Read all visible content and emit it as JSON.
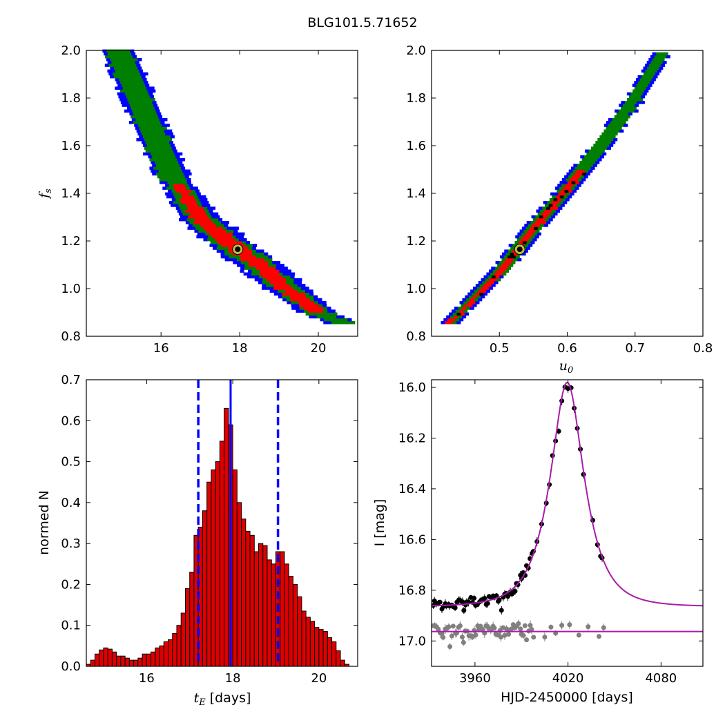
{
  "title": "BLG101.5.71652",
  "chart_data": [
    {
      "id": "fs_vs_tE",
      "type": "heatmap",
      "title": "",
      "xlabel": "",
      "ylabel": "f_s",
      "xlim": [
        14.1,
        21.0
      ],
      "ylim": [
        0.8,
        2.0
      ],
      "xticks": [
        16,
        18,
        20
      ],
      "yticks": [
        0.8,
        1.0,
        1.2,
        1.4,
        1.6,
        1.8,
        2.0
      ],
      "levels": [
        "red (1-sigma)",
        "green (2-sigma)",
        "blue (3-sigma)"
      ],
      "colors": {
        "red": "#ff0000",
        "green": "#007f00",
        "blue": "#0000ff",
        "best_fit_ring": "#bfbf3f"
      },
      "ridge": [
        [
          14.9,
          2.0
        ],
        [
          15.3,
          1.85
        ],
        [
          15.8,
          1.65
        ],
        [
          16.3,
          1.47
        ],
        [
          17.0,
          1.3
        ],
        [
          17.9,
          1.17
        ],
        [
          18.5,
          1.1
        ],
        [
          19.2,
          1.0
        ],
        [
          20.0,
          0.9
        ],
        [
          20.7,
          0.85
        ]
      ],
      "best_fit": {
        "x": 17.95,
        "y": 1.165
      }
    },
    {
      "id": "fs_vs_u0",
      "type": "heatmap",
      "title": "",
      "xlabel": "u_0",
      "ylabel": "",
      "xlim": [
        0.4,
        0.8
      ],
      "ylim": [
        0.8,
        2.0
      ],
      "xticks": [
        0.5,
        0.6,
        0.7,
        0.8
      ],
      "yticks": [
        0.8,
        1.0,
        1.2,
        1.4,
        1.6,
        1.8,
        2.0
      ],
      "ridge": [
        [
          0.425,
          0.85
        ],
        [
          0.5,
          1.07
        ],
        [
          0.55,
          1.25
        ],
        [
          0.6,
          1.42
        ],
        [
          0.65,
          1.6
        ],
        [
          0.7,
          1.8
        ],
        [
          0.74,
          1.99
        ]
      ],
      "best_fit": {
        "x": 0.53,
        "y": 1.165
      }
    },
    {
      "id": "tE_histogram",
      "type": "bar",
      "title": "",
      "xlabel": "t_E [days]",
      "ylabel": "normed N",
      "xlim": [
        14.6,
        20.9
      ],
      "ylim": [
        0.0,
        0.7
      ],
      "xticks": [
        16,
        18,
        20
      ],
      "yticks": [
        0.0,
        0.1,
        0.2,
        0.3,
        0.4,
        0.5,
        0.6,
        0.7
      ],
      "bin_start": 14.6,
      "bin_width": 0.1,
      "values": [
        0.005,
        0.015,
        0.03,
        0.04,
        0.045,
        0.042,
        0.035,
        0.025,
        0.025,
        0.02,
        0.015,
        0.015,
        0.02,
        0.03,
        0.03,
        0.035,
        0.045,
        0.05,
        0.06,
        0.065,
        0.08,
        0.1,
        0.13,
        0.19,
        0.23,
        0.32,
        0.34,
        0.38,
        0.45,
        0.48,
        0.5,
        0.55,
        0.63,
        0.59,
        0.48,
        0.4,
        0.36,
        0.33,
        0.32,
        0.28,
        0.3,
        0.295,
        0.26,
        0.25,
        0.28,
        0.28,
        0.25,
        0.22,
        0.2,
        0.17,
        0.135,
        0.12,
        0.11,
        0.095,
        0.09,
        0.085,
        0.07,
        0.06,
        0.038,
        0.015,
        0.005
      ],
      "bar_color": "#dd0000",
      "best_line": 17.95,
      "bounds": [
        17.2,
        19.05
      ],
      "line_color": "#0000ff"
    },
    {
      "id": "light_curve",
      "type": "scatter",
      "title": "",
      "xlabel": "HJD-2450000 [days]",
      "ylabel": "I [mag]",
      "xlim": [
        3932,
        4107
      ],
      "ylim": [
        17.1,
        15.97
      ],
      "xticks": [
        3960,
        4020,
        4080
      ],
      "yticks": [
        16.0,
        16.2,
        16.4,
        16.6,
        16.8,
        17.0
      ],
      "model": {
        "t0": 4019.5,
        "tE": 17.95,
        "u0": 0.53,
        "fs": 1.165,
        "baseline": 16.865,
        "color": "#aa1aaa"
      },
      "residual_baseline": 16.963,
      "colors": {
        "data": "#000000",
        "residuals": "#808080"
      }
    }
  ]
}
